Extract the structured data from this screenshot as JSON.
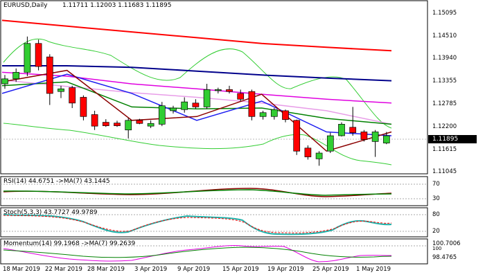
{
  "header": {
    "symbol": "EURUSD,Daily",
    "ohlc": "1.11711 1.12003 1.11683 1.11895"
  },
  "price_axis": {
    "ticks": [
      "1.15095",
      "1.14510",
      "1.13940",
      "1.13355",
      "1.12785",
      "1.12200",
      "1.11615",
      "1.11045"
    ],
    "current_price": "1.11895"
  },
  "date_axis": [
    "18 Mar 2019",
    "22 Mar 2019",
    "28 Mar 2019",
    "3 Apr 2019",
    "9 Apr 2019",
    "15 Apr 2019",
    "19 Apr 2019",
    "25 Apr 2019",
    "1 May 2019"
  ],
  "rsi": {
    "label": "RSI(14) 44.6751 ->MA(7) 43.1445",
    "ticks": [
      "70",
      "30"
    ]
  },
  "stoch": {
    "label": "Stoch(5,3,3) 43.7727 49.9789",
    "ticks": [
      "80",
      "20"
    ]
  },
  "momentum": {
    "label": "Momentum(14) 99.1968 ->MA(7) 99.2639",
    "ticks": [
      "100.7006",
      "100",
      "98.4765"
    ]
  },
  "colors": {
    "bull": "#32cd32",
    "bear": "#ff0000",
    "ma_red": "#ff0000",
    "ma_navy": "#00008b",
    "ma_magenta": "#e000e0",
    "ma_violet": "#e89de8",
    "ma_green": "#008000",
    "ma_blue": "#1e1ef0",
    "ma_maroon": "#8b0000",
    "bollinger": "#32cd32",
    "stoch_main": "#20b2aa"
  },
  "chart_data": {
    "type": "candlestick",
    "instrument": "EURUSD",
    "timeframe": "Daily",
    "candles": [
      {
        "o": 1.1325,
        "h": 1.1348,
        "l": 1.1312,
        "c": 1.1338
      },
      {
        "o": 1.1338,
        "h": 1.1365,
        "l": 1.133,
        "c": 1.1355
      },
      {
        "o": 1.1355,
        "h": 1.1448,
        "l": 1.1345,
        "c": 1.143
      },
      {
        "o": 1.143,
        "h": 1.144,
        "l": 1.136,
        "c": 1.137
      },
      {
        "o": 1.1395,
        "h": 1.1402,
        "l": 1.127,
        "c": 1.13
      },
      {
        "o": 1.1305,
        "h": 1.132,
        "l": 1.1288,
        "c": 1.1312
      },
      {
        "o": 1.1315,
        "h": 1.132,
        "l": 1.1262,
        "c": 1.1275
      },
      {
        "o": 1.129,
        "h": 1.1295,
        "l": 1.123,
        "c": 1.124
      },
      {
        "o": 1.1245,
        "h": 1.1255,
        "l": 1.1205,
        "c": 1.1215
      },
      {
        "o": 1.1225,
        "h": 1.1233,
        "l": 1.1213,
        "c": 1.1216
      },
      {
        "o": 1.1223,
        "h": 1.1229,
        "l": 1.1213,
        "c": 1.1216
      },
      {
        "o": 1.1205,
        "h": 1.1236,
        "l": 1.1183,
        "c": 1.123
      },
      {
        "o": 1.123,
        "h": 1.1234,
        "l": 1.122,
        "c": 1.1222
      },
      {
        "o": 1.1215,
        "h": 1.123,
        "l": 1.121,
        "c": 1.1222
      },
      {
        "o": 1.122,
        "h": 1.1278,
        "l": 1.1215,
        "c": 1.1268
      },
      {
        "o": 1.1255,
        "h": 1.1268,
        "l": 1.1248,
        "c": 1.1262
      },
      {
        "o": 1.1258,
        "h": 1.129,
        "l": 1.125,
        "c": 1.1278
      },
      {
        "o": 1.1275,
        "h": 1.1285,
        "l": 1.126,
        "c": 1.1265
      },
      {
        "o": 1.1265,
        "h": 1.1325,
        "l": 1.126,
        "c": 1.131
      },
      {
        "o": 1.1308,
        "h": 1.1315,
        "l": 1.13,
        "c": 1.131
      },
      {
        "o": 1.131,
        "h": 1.132,
        "l": 1.13,
        "c": 1.1305
      },
      {
        "o": 1.13,
        "h": 1.131,
        "l": 1.128,
        "c": 1.1285
      },
      {
        "o": 1.1305,
        "h": 1.131,
        "l": 1.123,
        "c": 1.124
      },
      {
        "o": 1.124,
        "h": 1.1255,
        "l": 1.1232,
        "c": 1.125
      },
      {
        "o": 1.124,
        "h": 1.1262,
        "l": 1.1232,
        "c": 1.1258
      },
      {
        "o": 1.1255,
        "h": 1.1258,
        "l": 1.1225,
        "c": 1.1232
      },
      {
        "o": 1.123,
        "h": 1.1232,
        "l": 1.114,
        "c": 1.115
      },
      {
        "o": 1.1158,
        "h": 1.1165,
        "l": 1.1128,
        "c": 1.1135
      },
      {
        "o": 1.113,
        "h": 1.115,
        "l": 1.1112,
        "c": 1.1145
      },
      {
        "o": 1.115,
        "h": 1.1198,
        "l": 1.1145,
        "c": 1.119
      },
      {
        "o": 1.119,
        "h": 1.1225,
        "l": 1.1188,
        "c": 1.122
      },
      {
        "o": 1.1212,
        "h": 1.1265,
        "l": 1.119,
        "c": 1.1198
      },
      {
        "o": 1.12,
        "h": 1.1205,
        "l": 1.1175,
        "c": 1.118
      },
      {
        "o": 1.1175,
        "h": 1.1205,
        "l": 1.1135,
        "c": 1.12
      },
      {
        "o": 1.1171,
        "h": 1.12,
        "l": 1.1168,
        "c": 1.119
      }
    ],
    "moving_averages": [
      {
        "name": "",
        "color": "ma_red",
        "values": [
          1.149,
          1.1475,
          1.146,
          1.1445,
          1.143,
          1.142,
          1.1411
        ]
      },
      {
        "name": "",
        "color": "ma_navy",
        "values": [
          1.1372,
          1.1372,
          1.1368,
          1.1358,
          1.1348,
          1.134,
          1.1333
        ]
      },
      {
        "name": "",
        "color": "ma_magenta",
        "values": [
          1.1355,
          1.1345,
          1.1325,
          1.1312,
          1.1298,
          1.1285,
          1.1275
        ]
      },
      {
        "name": "",
        "color": "ma_violet",
        "values": [
          1.1335,
          1.1318,
          1.1302,
          1.129,
          1.1275,
          1.1255,
          1.122
        ]
      },
      {
        "name": "",
        "color": "ma_green",
        "values": [
          1.132,
          1.133,
          1.1265,
          1.126,
          1.1262,
          1.1235,
          1.122
        ]
      },
      {
        "name": "",
        "color": "ma_blue",
        "values": [
          1.13,
          1.135,
          1.13,
          1.123,
          1.128,
          1.12,
          1.119
        ]
      },
      {
        "name": "",
        "color": "ma_maroon",
        "values": [
          1.133,
          1.136,
          1.123,
          1.124,
          1.1298,
          1.115,
          1.12
        ]
      }
    ],
    "price_ylim": [
      1.11,
      1.1525
    ]
  }
}
